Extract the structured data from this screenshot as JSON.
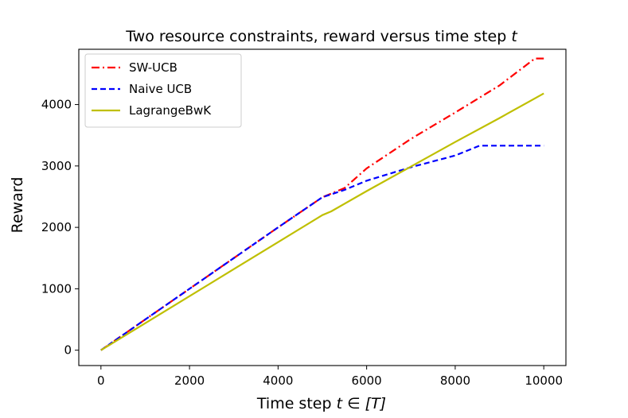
{
  "chart_data": {
    "type": "line",
    "title": "Two resource constraints, reward versus time step",
    "title_var": "t",
    "xlabel": "Time step",
    "xlabel_math": "t ∈ [T]",
    "ylabel": "Reward",
    "xlim": [
      -500,
      10500
    ],
    "ylim": [
      -250,
      4900
    ],
    "xticks": [
      0,
      2000,
      4000,
      6000,
      8000,
      10000
    ],
    "xtick_labels": [
      "0",
      "2000",
      "4000",
      "6000",
      "8000",
      "10000"
    ],
    "yticks": [
      0,
      1000,
      2000,
      3000,
      4000
    ],
    "ytick_labels": [
      "0",
      "1000",
      "2000",
      "3000",
      "4000"
    ],
    "grid": false,
    "legend_position": "top-left",
    "series": [
      {
        "name": "SW-UCB",
        "color": "#ff0000",
        "style": "dashdot",
        "x": [
          0,
          1000,
          2000,
          3000,
          4000,
          5000,
          5500,
          6000,
          7000,
          8000,
          9000,
          9800,
          10000
        ],
        "y": [
          0,
          500,
          1000,
          1500,
          2000,
          2490,
          2640,
          2960,
          3440,
          3870,
          4310,
          4750,
          4750
        ]
      },
      {
        "name": "Naive UCB",
        "color": "#0000ff",
        "style": "dashed",
        "x": [
          0,
          1000,
          2000,
          3000,
          4000,
          5000,
          5500,
          6000,
          7000,
          8000,
          8550,
          10000
        ],
        "y": [
          0,
          500,
          1000,
          1500,
          2000,
          2490,
          2610,
          2760,
          2980,
          3170,
          3330,
          3330
        ]
      },
      {
        "name": "LagrangeBwK",
        "color": "#bfbf00",
        "style": "solid",
        "x": [
          0,
          1000,
          2000,
          3000,
          4000,
          5000,
          5200,
          6000,
          7000,
          8000,
          9000,
          10000
        ],
        "y": [
          0,
          440,
          880,
          1320,
          1760,
          2200,
          2260,
          2590,
          2990,
          3390,
          3780,
          4180
        ]
      }
    ]
  }
}
